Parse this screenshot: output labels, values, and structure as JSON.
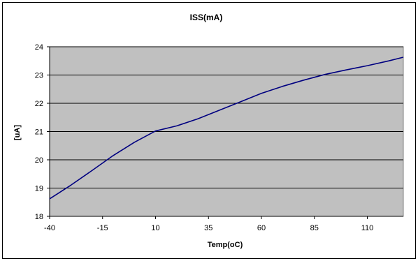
{
  "chart_data": {
    "type": "line",
    "title": "ISS(mA)",
    "xlabel": "Temp(oC)",
    "ylabel": "[uA]",
    "xlim": [
      -40,
      127
    ],
    "ylim": [
      18,
      24
    ],
    "x_ticks": [
      -40,
      -15,
      10,
      35,
      60,
      85,
      110
    ],
    "y_ticks": [
      18,
      19,
      20,
      21,
      22,
      23,
      24
    ],
    "grid": "horizontal",
    "legend": "none",
    "colors": {
      "plot_background": "#c0c0c0",
      "line": "#000080",
      "gridline": "#000000"
    },
    "series": [
      {
        "x": [
          -40,
          -30,
          -20,
          -10,
          0,
          10,
          20,
          30,
          40,
          50,
          60,
          70,
          80,
          90,
          100,
          110,
          120,
          127
        ],
        "y": [
          18.62,
          19.1,
          19.62,
          20.15,
          20.62,
          21.02,
          21.2,
          21.45,
          21.75,
          22.05,
          22.35,
          22.6,
          22.82,
          23.02,
          23.18,
          23.33,
          23.5,
          23.63
        ]
      }
    ]
  }
}
